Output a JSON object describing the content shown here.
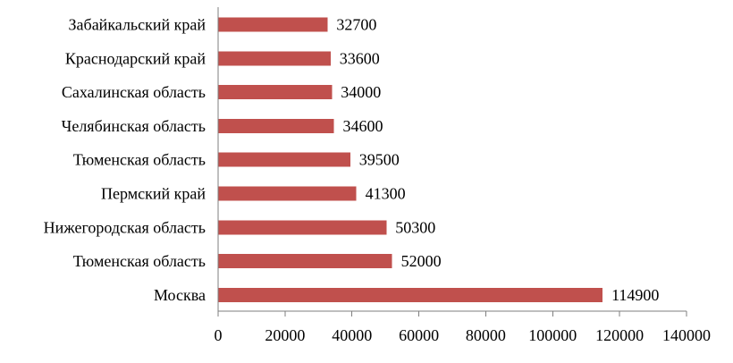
{
  "chart_data": {
    "type": "bar",
    "orientation": "horizontal",
    "categories": [
      "Забайкальский край",
      "Краснодарский край",
      "Сахалинская область",
      "Челябинская область",
      "Тюменская область",
      "Пермский край",
      "Нижегородская область",
      "Тюменская область",
      "Москва"
    ],
    "values": [
      32700,
      33600,
      34000,
      34600,
      39500,
      41300,
      50300,
      52000,
      114900
    ],
    "data_labels": [
      "32700",
      "33600",
      "34000",
      "34600",
      "39500",
      "41300",
      "50300",
      "52000",
      "114900"
    ],
    "xlim": [
      0,
      140000
    ],
    "x_ticks": [
      0,
      20000,
      40000,
      60000,
      80000,
      100000,
      120000,
      140000
    ],
    "x_tick_labels": [
      "0",
      "20000",
      "40000",
      "60000",
      "80000",
      "100000",
      "120000",
      "140000"
    ],
    "title": "",
    "xlabel": "",
    "ylabel": "",
    "grid": false,
    "legend": "none",
    "bar_color": "#c0504d"
  }
}
